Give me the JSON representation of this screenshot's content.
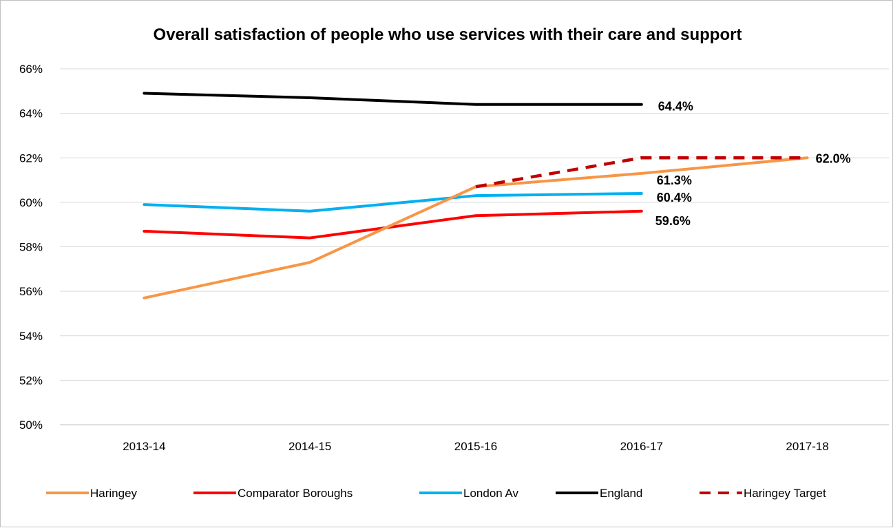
{
  "chart_data": {
    "type": "line",
    "title": "Overall satisfaction of people who use services with their care and support",
    "categories": [
      "2013-14",
      "2014-15",
      "2015-16",
      "2016-17",
      "2017-18"
    ],
    "ylim": [
      50,
      66
    ],
    "yticks": [
      50,
      52,
      54,
      56,
      58,
      60,
      62,
      64,
      66
    ],
    "ytick_labels": [
      "50%",
      "52%",
      "54%",
      "56%",
      "58%",
      "60%",
      "62%",
      "64%",
      "66%"
    ],
    "grid": true,
    "legend_position": "bottom",
    "series": [
      {
        "name": "Haringey",
        "color": "#F79646",
        "dash": false,
        "values": [
          55.7,
          57.3,
          60.7,
          61.3,
          62.0
        ]
      },
      {
        "name": "Comparator Boroughs",
        "color": "#FF0000",
        "dash": false,
        "values": [
          58.7,
          58.4,
          59.4,
          59.6,
          null
        ]
      },
      {
        "name": "London Av",
        "color": "#00B0F0",
        "dash": false,
        "values": [
          59.9,
          59.6,
          60.3,
          60.4,
          null
        ]
      },
      {
        "name": "England",
        "color": "#000000",
        "dash": false,
        "values": [
          64.9,
          64.7,
          64.4,
          64.4,
          null
        ]
      },
      {
        "name": "Haringey Target",
        "color": "#C00000",
        "dash": true,
        "values": [
          null,
          null,
          60.7,
          62.0,
          62.0
        ]
      }
    ],
    "data_labels": [
      {
        "series": "England",
        "category": "2016-17",
        "text": "64.4%"
      },
      {
        "series": "Haringey",
        "category": "2016-17",
        "text": "61.3%"
      },
      {
        "series": "London Av",
        "category": "2016-17",
        "text": "60.4%"
      },
      {
        "series": "Comparator Boroughs",
        "category": "2016-17",
        "text": "59.6%"
      },
      {
        "series": "Haringey",
        "category": "2017-18",
        "text": "62.0%"
      }
    ]
  }
}
